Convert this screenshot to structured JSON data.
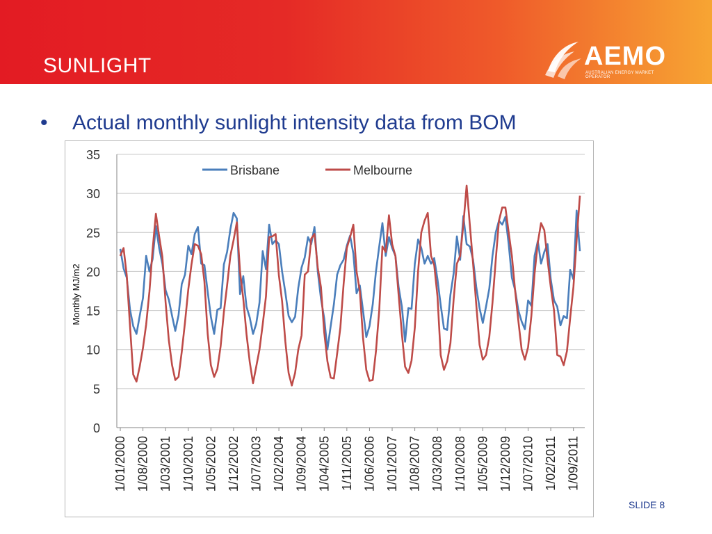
{
  "slide": {
    "title": "SUNLIGHT",
    "bullet": "Actual monthly sunlight intensity data from BOM",
    "slide_label": "SLIDE 8",
    "logo_text": "AEMO",
    "logo_subtext": "AUSTRALIAN ENERGY MARKET OPERATOR",
    "colors": {
      "header_start": "#e31b23",
      "header_end": "#f7a533",
      "text_blue": "#1f3b8f"
    }
  },
  "chart_data": {
    "type": "line",
    "xlabel": "",
    "ylabel": "Monthly MJ/m2",
    "ylim": [
      0,
      35
    ],
    "yticks": [
      0,
      5,
      10,
      15,
      20,
      25,
      30,
      35
    ],
    "legend_position": "top",
    "grid": "horizontal",
    "start_month": "2000-01",
    "xtick_labels": [
      "1/01/2000",
      "1/08/2000",
      "1/03/2001",
      "1/10/2001",
      "1/05/2002",
      "1/12/2002",
      "1/07/2003",
      "1/02/2004",
      "1/09/2004",
      "1/04/2005",
      "1/11/2005",
      "1/06/2006",
      "1/01/2007",
      "1/08/2007",
      "1/03/2008",
      "1/10/2008",
      "1/05/2009",
      "1/12/2009",
      "1/07/2010",
      "1/02/2011",
      "1/09/2011"
    ],
    "series": [
      {
        "name": "Brisbane",
        "color": "#4a7ebb",
        "values": [
          22.9,
          20.4,
          19.2,
          15.1,
          13.0,
          12.0,
          14.3,
          16.6,
          22.0,
          20.0,
          21.6,
          25.8,
          23.0,
          21.0,
          17.6,
          16.4,
          14.3,
          12.4,
          14.4,
          18.4,
          19.6,
          23.3,
          22.2,
          24.8,
          25.7,
          21.0,
          20.8,
          17.4,
          14.2,
          12.0,
          15.1,
          15.3,
          20.9,
          22.5,
          25.4,
          27.5,
          26.8,
          17.1,
          19.4,
          15.5,
          14.1,
          12.0,
          13.3,
          16.0,
          22.6,
          20.3,
          26.0,
          23.5,
          24.0,
          23.5,
          20.0,
          17.3,
          14.3,
          13.5,
          14.2,
          17.9,
          20.5,
          21.8,
          24.4,
          23.5,
          25.7,
          20.0,
          16.5,
          14.0,
          10.0,
          13.0,
          15.8,
          19.6,
          20.8,
          21.5,
          23.3,
          24.6,
          22.3,
          17.2,
          18.2,
          15.0,
          11.6,
          13.0,
          15.8,
          20.0,
          23.2,
          26.2,
          22.0,
          24.4,
          23.0,
          22.0,
          18.0,
          15.5,
          11.0,
          15.3,
          15.2,
          21.0,
          24.1,
          23.0,
          21.0,
          22.0,
          21.0,
          21.7,
          19.0,
          15.7,
          12.7,
          12.5,
          17.0,
          19.8,
          24.5,
          21.5,
          27.1,
          23.5,
          23.2,
          21.5,
          18.0,
          15.3,
          13.4,
          15.5,
          17.8,
          22.0,
          25.0,
          26.5,
          26.0,
          27.0,
          23.5,
          19.2,
          17.6,
          15.0,
          13.6,
          12.6,
          16.3,
          15.6,
          22.0,
          23.9,
          21.0,
          22.5,
          23.5,
          19.0,
          16.3,
          15.5,
          13.1,
          14.3,
          14.0,
          20.2,
          19.0,
          27.8,
          22.6
        ]
      },
      {
        "name": "Melbourne",
        "color": "#be4b48",
        "values": [
          22.0,
          23.0,
          19.5,
          13.0,
          6.8,
          5.9,
          7.8,
          10.2,
          13.2,
          17.4,
          22.8,
          27.4,
          24.5,
          21.9,
          16.0,
          11.2,
          8.0,
          6.1,
          6.5,
          9.7,
          13.5,
          17.7,
          20.9,
          23.5,
          23.3,
          22.2,
          18.7,
          12.0,
          8.0,
          6.5,
          7.5,
          10.4,
          14.8,
          18.2,
          22.0,
          24.0,
          26.3,
          20.0,
          16.5,
          12.0,
          8.4,
          5.7,
          7.8,
          10.0,
          13.2,
          16.8,
          24.4,
          24.5,
          24.8,
          19.5,
          16.2,
          11.0,
          7.0,
          5.4,
          7.0,
          10.0,
          11.8,
          19.6,
          20.0,
          24.2,
          24.8,
          20.5,
          18.0,
          12.2,
          8.5,
          6.4,
          6.3,
          9.5,
          12.8,
          18.4,
          23.0,
          24.4,
          26.0,
          20.0,
          17.5,
          11.5,
          7.4,
          6.0,
          6.1,
          9.8,
          15.0,
          23.2,
          22.5,
          27.2,
          23.5,
          22.0,
          17.0,
          12.0,
          7.8,
          7.0,
          8.6,
          12.8,
          20.0,
          25.0,
          26.5,
          27.5,
          22.0,
          20.8,
          16.8,
          9.3,
          7.4,
          8.5,
          10.8,
          16.5,
          21.0,
          22.0,
          26.0,
          31.0,
          26.0,
          21.0,
          15.7,
          10.6,
          8.7,
          9.3,
          11.6,
          16.0,
          21.5,
          26.5,
          28.2,
          28.2,
          25.0,
          22.0,
          17.5,
          13.6,
          10.0,
          8.7,
          10.3,
          14.3,
          19.7,
          23.7,
          26.2,
          25.3,
          21.5,
          18.0,
          15.0,
          9.3,
          9.1,
          8.0,
          9.8,
          14.0,
          18.0,
          24.0,
          29.7
        ]
      }
    ]
  }
}
